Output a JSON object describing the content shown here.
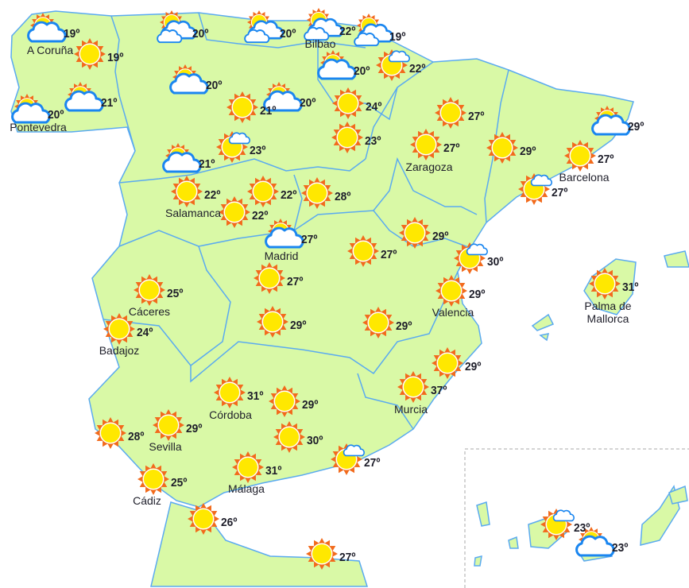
{
  "colors": {
    "land": "#d9f9a6",
    "border": "#5aaaf0",
    "sun_rays": "#f26a1b",
    "sun_core": "#ffe800",
    "cloud_stroke": "#1a86f0",
    "text": "#1e1e2a"
  },
  "icon_types": {
    "sun": "sun-icon",
    "sun-cloud": "sun-behind-cloud-icon",
    "sun-small-cloud": "sun-small-cloud-icon",
    "clouds": "sun-two-clouds-icon"
  },
  "forecasts": [
    {
      "temp": "19º",
      "icon": "sun-cloud",
      "city": "A Coruña"
    },
    {
      "temp": "19º",
      "icon": "sun"
    },
    {
      "temp": "20º",
      "icon": "clouds"
    },
    {
      "temp": "20º",
      "icon": "clouds"
    },
    {
      "temp": "22º",
      "icon": "clouds",
      "city": "Bilbao"
    },
    {
      "temp": "19º",
      "icon": "clouds"
    },
    {
      "temp": "20º",
      "icon": "sun-cloud",
      "city": "Pontevedra"
    },
    {
      "temp": "21º",
      "icon": "sun-cloud"
    },
    {
      "temp": "20º",
      "icon": "sun-cloud"
    },
    {
      "temp": "20º",
      "icon": "sun-cloud"
    },
    {
      "temp": "22º",
      "icon": "sun-small-cloud"
    },
    {
      "temp": "21º",
      "icon": "sun"
    },
    {
      "temp": "20º",
      "icon": "sun-cloud"
    },
    {
      "temp": "24º",
      "icon": "sun"
    },
    {
      "temp": "27º",
      "icon": "sun"
    },
    {
      "temp": "23º",
      "icon": "sun-small-cloud"
    },
    {
      "temp": "23º",
      "icon": "sun"
    },
    {
      "temp": "27º",
      "icon": "sun",
      "city": "Zaragoza"
    },
    {
      "temp": "29º",
      "icon": "sun"
    },
    {
      "temp": "29º",
      "icon": "sun-cloud"
    },
    {
      "temp": "27º",
      "icon": "sun",
      "city": "Barcelona"
    },
    {
      "temp": "21º",
      "icon": "sun-cloud"
    },
    {
      "temp": "22º",
      "icon": "sun",
      "city": "Salamanca"
    },
    {
      "temp": "22º",
      "icon": "sun"
    },
    {
      "temp": "28º",
      "icon": "sun"
    },
    {
      "temp": "22º",
      "icon": "sun"
    },
    {
      "temp": "27º",
      "icon": "sun-small-cloud"
    },
    {
      "temp": "27º",
      "icon": "sun-cloud",
      "city": "Madrid"
    },
    {
      "temp": "29º",
      "icon": "sun"
    },
    {
      "temp": "27º",
      "icon": "sun"
    },
    {
      "temp": "30º",
      "icon": "sun-small-cloud"
    },
    {
      "temp": "25º",
      "icon": "sun",
      "city": "Cáceres"
    },
    {
      "temp": "27º",
      "icon": "sun"
    },
    {
      "temp": "29º",
      "icon": "sun",
      "city": "Valencia"
    },
    {
      "temp": "31º",
      "icon": "sun",
      "city": "Palma de Mallorca"
    },
    {
      "temp": "24º",
      "icon": "sun",
      "city": "Badajoz"
    },
    {
      "temp": "29º",
      "icon": "sun"
    },
    {
      "temp": "29º",
      "icon": "sun"
    },
    {
      "temp": "29º",
      "icon": "sun"
    },
    {
      "temp": "37º",
      "icon": "sun",
      "city": "Murcia"
    },
    {
      "temp": "31º",
      "icon": "sun",
      "city": "Córdoba"
    },
    {
      "temp": "29º",
      "icon": "sun"
    },
    {
      "temp": "28º",
      "icon": "sun"
    },
    {
      "temp": "29º",
      "icon": "sun",
      "city": "Sevilla"
    },
    {
      "temp": "30º",
      "icon": "sun"
    },
    {
      "temp": "27º",
      "icon": "sun-small-cloud"
    },
    {
      "temp": "25º",
      "icon": "sun",
      "city": "Cádiz"
    },
    {
      "temp": "31º",
      "icon": "sun",
      "city": "Málaga"
    },
    {
      "temp": "26º",
      "icon": "sun"
    },
    {
      "temp": "27º",
      "icon": "sun"
    },
    {
      "temp": "23º",
      "icon": "sun-small-cloud"
    },
    {
      "temp": "23º",
      "icon": "sun-cloud"
    }
  ]
}
